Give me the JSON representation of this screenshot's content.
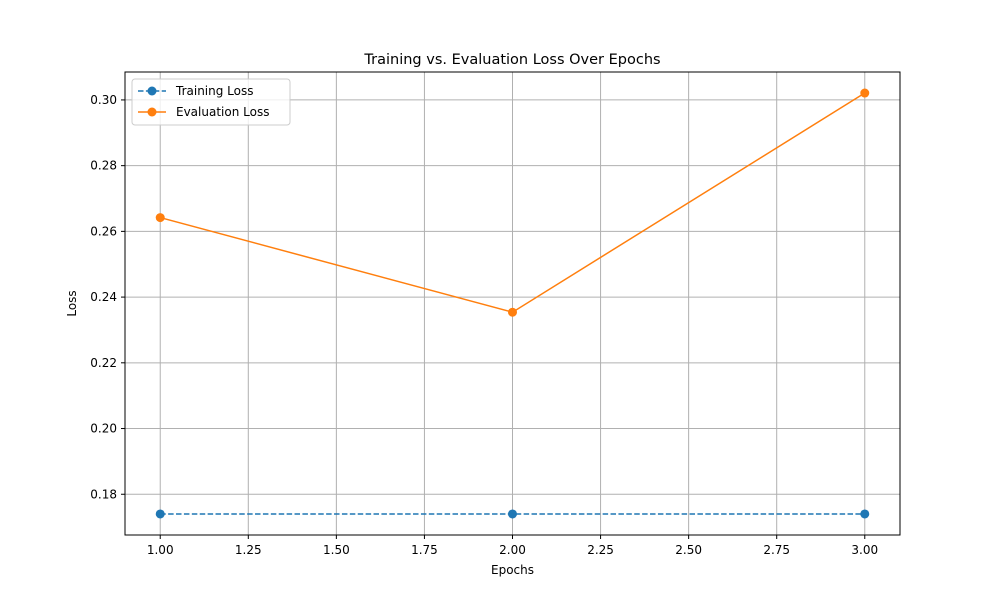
{
  "chart_data": {
    "type": "line",
    "title": "Training vs. Evaluation Loss Over Epochs",
    "xlabel": "Epochs",
    "ylabel": "Loss",
    "x": [
      1.0,
      2.0,
      3.0
    ],
    "series": [
      {
        "name": "Training Loss",
        "values": [
          0.174,
          0.174,
          0.174
        ],
        "color": "#1f77b4",
        "line_style": "dashed",
        "marker": "circle"
      },
      {
        "name": "Evaluation Loss",
        "values": [
          0.2642,
          0.2354,
          0.3021
        ],
        "color": "#ff7f0e",
        "line_style": "solid",
        "marker": "circle"
      }
    ],
    "xlim": [
      0.9,
      3.1
    ],
    "ylim": [
      0.1676,
      0.3085
    ],
    "x_ticks": [
      1.0,
      1.25,
      1.5,
      1.75,
      2.0,
      2.25,
      2.5,
      2.75,
      3.0
    ],
    "x_tick_labels": [
      "1.00",
      "1.25",
      "1.50",
      "1.75",
      "2.00",
      "2.25",
      "2.50",
      "2.75",
      "3.00"
    ],
    "y_ticks": [
      0.18,
      0.2,
      0.22,
      0.24,
      0.26,
      0.28,
      0.3
    ],
    "y_tick_labels": [
      "0.18",
      "0.20",
      "0.22",
      "0.24",
      "0.26",
      "0.28",
      "0.30"
    ],
    "grid": true,
    "grid_color": "#b0b0b0",
    "legend_position": "upper-left"
  }
}
